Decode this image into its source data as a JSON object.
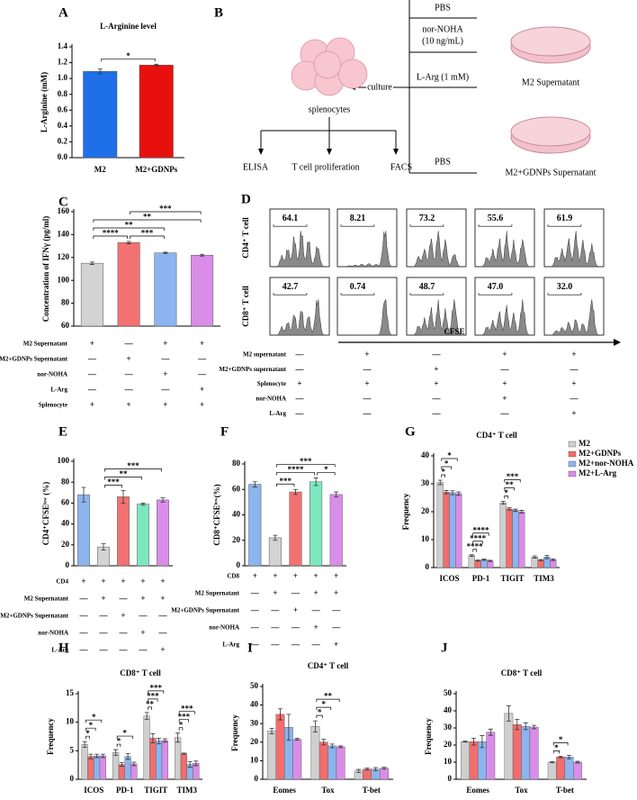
{
  "diagram": {
    "panel": "B",
    "treatments": [
      "PBS",
      "nor-NOHA",
      "(10 ng/mL)",
      "L-Arg (1 mM)",
      "PBS"
    ],
    "dishes": [
      "M2 Supernatant",
      "M2+GDNPs Supernatant"
    ],
    "culture": "culture",
    "cells": "splenocytes",
    "readouts": [
      "ELISA",
      "T cell proliferation",
      "FACS"
    ]
  },
  "chart_data": [
    {
      "panel": "A",
      "type": "bar",
      "title": "L-Arginine level",
      "ylabel": "L-Arginine (mM)",
      "categories": [
        "M2",
        "M2+GDNPs"
      ],
      "values": [
        1.09,
        1.17
      ],
      "errors": [
        0.03,
        0.01
      ],
      "colors": [
        "#1f6fe8",
        "#e8100f"
      ],
      "ylim": [
        0,
        1.4
      ],
      "yticks": [
        {
          "value": 0,
          "label": "0.0"
        },
        0.2,
        0.4,
        0.6,
        0.8,
        {
          "value": 1,
          "label": "1.0"
        },
        1.2,
        1.4
      ],
      "significance": [
        {
          "bars": [
            0,
            1
          ],
          "label": "*"
        }
      ]
    },
    {
      "panel": "C",
      "type": "bar",
      "ylabel": "Concentration of IFNγ (pg/ml)",
      "values": [
        115,
        133,
        124,
        122
      ],
      "errors": [
        1,
        1,
        0.6,
        0.8
      ],
      "colors": [
        "#d3d3d3",
        "#f27272",
        "#8cb4ee",
        "#d98de8"
      ],
      "ylim": [
        60,
        160
      ],
      "yticks": [
        60,
        80,
        100,
        120,
        140,
        160
      ],
      "significance": [
        {
          "bars": [
            0,
            1
          ],
          "label": "****"
        },
        {
          "bars": [
            1,
            2
          ],
          "label": "***"
        },
        {
          "bars": [
            0,
            2
          ],
          "label": "**"
        },
        {
          "bars": [
            0,
            3
          ],
          "label": "**"
        },
        {
          "bars": [
            1,
            3
          ],
          "label": "***"
        }
      ],
      "conditions": [
        {
          "name": "M2 Supernatant",
          "marks": [
            "+",
            "—",
            "+",
            "+"
          ]
        },
        {
          "name": "M2+GDNPs Supernatant",
          "marks": [
            "—",
            "+",
            "—",
            "—"
          ]
        },
        {
          "name": "nor-NOHA",
          "marks": [
            "—",
            "—",
            "+",
            "—"
          ]
        },
        {
          "name": "L-Arg",
          "marks": [
            "—",
            "—",
            "—",
            "+"
          ]
        },
        {
          "name": "Splenocyte",
          "marks": [
            "+",
            "+",
            "+",
            "+"
          ]
        }
      ]
    },
    {
      "panel": "D",
      "type": "flow_histogram",
      "xlabel": "CFSE",
      "color": "#8a8a8a",
      "rows": [
        {
          "name": "CD4⁺ T cell",
          "values": [
            64.1,
            8.21,
            73.2,
            55.6,
            61.9
          ],
          "value_labels": [
            "64.1",
            "8.21",
            "73.2",
            "55.6",
            "61.9"
          ]
        },
        {
          "name": "CD8⁺ T cell",
          "values": [
            42.7,
            0.74,
            48.7,
            47,
            32
          ],
          "value_labels": [
            "42.7",
            "0.74",
            "48.7",
            "47.0",
            "32.0"
          ]
        }
      ],
      "conditions": [
        {
          "name": "M2 supernatant",
          "marks": [
            "—",
            "+",
            "—",
            "+",
            "+"
          ]
        },
        {
          "name": "M2+GDNPs supernatant",
          "marks": [
            "—",
            "—",
            "+",
            "—",
            "—"
          ]
        },
        {
          "name": "Splenocyte",
          "marks": [
            "+",
            "+",
            "+",
            "+",
            "+"
          ]
        },
        {
          "name": "nor-NOHA",
          "marks": [
            "—",
            "—",
            "—",
            "+",
            "—"
          ]
        },
        {
          "name": "L-Arg",
          "marks": [
            "—",
            "—",
            "—",
            "—",
            "+"
          ]
        }
      ]
    },
    {
      "panel": "E",
      "type": "bar",
      "ylabel": "CD4⁺CFSEˡᵒʷ (%)",
      "values": [
        68,
        18,
        66,
        59,
        63
      ],
      "errors": [
        7,
        3,
        6,
        1,
        2
      ],
      "colors": [
        "#8cb4ee",
        "#d3d3d3",
        "#f27272",
        "#7de8c0",
        "#d98de8"
      ],
      "ylim": [
        0,
        100
      ],
      "yticks": [
        0,
        20,
        40,
        60,
        80,
        100
      ],
      "significance": [
        {
          "bars": [
            1,
            2
          ],
          "label": "***"
        },
        {
          "bars": [
            1,
            3
          ],
          "label": "**"
        },
        {
          "bars": [
            1,
            4
          ],
          "label": "***"
        }
      ],
      "conditions": [
        {
          "name": "CD4",
          "marks": [
            "+",
            "+",
            "+",
            "+",
            "+"
          ]
        },
        {
          "name": "M2 Supernatant",
          "marks": [
            "—",
            "+",
            "—",
            "+",
            "+"
          ]
        },
        {
          "name": "M2+GDNPs Supernatant",
          "marks": [
            "—",
            "—",
            "+",
            "—",
            "—"
          ]
        },
        {
          "name": "nor-NOHA",
          "marks": [
            "—",
            "—",
            "—",
            "+",
            "—"
          ]
        },
        {
          "name": "L-Arg",
          "marks": [
            "—",
            "—",
            "—",
            "—",
            "+"
          ]
        }
      ]
    },
    {
      "panel": "F",
      "type": "bar",
      "ylabel": "CD8⁺CFSEˡᵒʷ(%)",
      "values": [
        64,
        22,
        58,
        66,
        56
      ],
      "errors": [
        2,
        2,
        2,
        3,
        2
      ],
      "colors": [
        "#8cb4ee",
        "#d3d3d3",
        "#f27272",
        "#7de8c0",
        "#d98de8"
      ],
      "ylim": [
        0,
        80
      ],
      "yticks": [
        0,
        20,
        40,
        60,
        80
      ],
      "significance": [
        {
          "bars": [
            1,
            2
          ],
          "label": "***"
        },
        {
          "bars": [
            3,
            4
          ],
          "label": "*"
        },
        {
          "bars": [
            1,
            3
          ],
          "label": "****"
        },
        {
          "bars": [
            1,
            4
          ],
          "label": "***"
        }
      ],
      "conditions": [
        {
          "name": "CD8",
          "marks": [
            "+",
            "+",
            "+",
            "+",
            "+"
          ]
        },
        {
          "name": "M2 Supernatant",
          "marks": [
            "—",
            "+",
            "—",
            "+",
            "+"
          ]
        },
        {
          "name": "M2+GDNPs Supernatant",
          "marks": [
            "—",
            "—",
            "+",
            "—",
            "—"
          ]
        },
        {
          "name": "nor-NOHA",
          "marks": [
            "—",
            "—",
            "—",
            "+",
            "—"
          ]
        },
        {
          "name": "L-Arg",
          "marks": [
            "—",
            "—",
            "—",
            "—",
            "+"
          ]
        }
      ]
    },
    {
      "panel": "G",
      "type": "grouped_bar",
      "title": "CD4⁺ T cell",
      "ylabel": "Frequency",
      "categories": [
        "ICOS",
        "PD-1",
        "TIGIT",
        "TIM3"
      ],
      "legend": "upper right",
      "ylim": [
        0,
        40
      ],
      "yticks": [
        0,
        10,
        20,
        30,
        40
      ],
      "series": [
        {
          "name": "M2",
          "color": "#cfcfcf",
          "values": [
            30.5,
            4.3,
            23.2,
            3.8
          ],
          "errors": [
            0.8,
            0.3,
            0.5,
            0.4
          ]
        },
        {
          "name": "M2+GDNPs",
          "color": "#f26d6d",
          "values": [
            27,
            2.5,
            21,
            2.7
          ],
          "errors": [
            0.6,
            0.2,
            0.4,
            0.2
          ]
        },
        {
          "name": "M2+nor-NOHA",
          "color": "#8cb4ee",
          "values": [
            26.8,
            2.8,
            20.5,
            3.8
          ],
          "errors": [
            0.7,
            0.2,
            0.4,
            0.6
          ]
        },
        {
          "name": "M2+L-Arg",
          "color": "#d98de8",
          "values": [
            26.5,
            2.4,
            20,
            2.8
          ],
          "errors": [
            0.6,
            0.2,
            0.5,
            0.3
          ]
        }
      ],
      "significance": [
        {
          "category": "ICOS",
          "bars": [
            0,
            1
          ],
          "label": "*"
        },
        {
          "category": "ICOS",
          "bars": [
            0,
            2
          ],
          "label": "*"
        },
        {
          "category": "ICOS",
          "bars": [
            0,
            3
          ],
          "label": "*"
        },
        {
          "category": "PD-1",
          "bars": [
            0,
            1
          ],
          "label": "****"
        },
        {
          "category": "PD-1",
          "bars": [
            0,
            2
          ],
          "label": "****"
        },
        {
          "category": "PD-1",
          "bars": [
            0,
            3
          ],
          "label": "****"
        },
        {
          "category": "TIGIT",
          "bars": [
            0,
            1
          ],
          "label": "*"
        },
        {
          "category": "TIGIT",
          "bars": [
            0,
            2
          ],
          "label": "**"
        },
        {
          "category": "TIGIT",
          "bars": [
            0,
            3
          ],
          "label": "***"
        }
      ]
    },
    {
      "panel": "H",
      "type": "grouped_bar",
      "title": "CD8⁺ T cell",
      "ylabel": "Frequency",
      "categories": [
        "ICOS",
        "PD-1",
        "TIGIT",
        "TIM3"
      ],
      "ylim": [
        0,
        15
      ],
      "yticks": [
        0,
        5,
        10,
        15
      ],
      "series": [
        {
          "color": "#cfcfcf",
          "values": [
            6.1,
            4.7,
            11.1,
            7.3
          ],
          "errors": [
            0.5,
            0.5,
            0.6,
            0.8
          ]
        },
        {
          "color": "#f26d6d",
          "values": [
            4,
            2.6,
            7.2,
            4.5
          ],
          "errors": [
            0.4,
            0.3,
            0.8,
            0.1
          ]
        },
        {
          "color": "#8cb4ee",
          "values": [
            4.1,
            4,
            6.7,
            2.6
          ],
          "errors": [
            0.3,
            0.5,
            0.5,
            0.5
          ]
        },
        {
          "color": "#d98de8",
          "values": [
            4.1,
            2.7,
            6.8,
            2.8
          ],
          "errors": [
            0.3,
            0.3,
            0.3,
            0.4
          ]
        }
      ],
      "significance": [
        {
          "category": "ICOS",
          "bars": [
            0,
            1
          ],
          "label": "*"
        },
        {
          "category": "ICOS",
          "bars": [
            0,
            2
          ],
          "label": "*"
        },
        {
          "category": "ICOS",
          "bars": [
            0,
            3
          ],
          "label": "*"
        },
        {
          "category": "PD-1",
          "bars": [
            0,
            1
          ],
          "label": "*"
        },
        {
          "category": "PD-1",
          "bars": [
            0,
            3
          ],
          "label": "*"
        },
        {
          "category": "TIGIT",
          "bars": [
            0,
            1
          ],
          "label": "**"
        },
        {
          "category": "TIGIT",
          "bars": [
            0,
            2
          ],
          "label": "***"
        },
        {
          "category": "TIGIT",
          "bars": [
            0,
            3
          ],
          "label": "***"
        },
        {
          "category": "TIM3",
          "bars": [
            0,
            1
          ],
          "label": "*"
        },
        {
          "category": "TIM3",
          "bars": [
            0,
            2
          ],
          "label": "***"
        },
        {
          "category": "TIM3",
          "bars": [
            0,
            3
          ],
          "label": "***"
        }
      ]
    },
    {
      "panel": "I",
      "type": "grouped_bar",
      "title": "CD4⁺ T cell",
      "ylabel": "Frequency",
      "categories": [
        "Eomes",
        "Tox",
        "T-bet"
      ],
      "ylim": [
        0,
        50
      ],
      "yticks": [
        0,
        10,
        20,
        30,
        40,
        50
      ],
      "series": [
        {
          "color": "#cfcfcf",
          "values": [
            26,
            28.5,
            4.5
          ],
          "errors": [
            1.5,
            3,
            0.8
          ]
        },
        {
          "color": "#f26d6d",
          "values": [
            35,
            20,
            5.5
          ],
          "errors": [
            3,
            1.5,
            0.5
          ]
        },
        {
          "color": "#8cb4ee",
          "values": [
            28,
            18,
            5.5
          ],
          "errors": [
            7,
            1,
            0.8
          ]
        },
        {
          "color": "#d98de8",
          "values": [
            21.5,
            17.5,
            6
          ],
          "errors": [
            0.5,
            0.5,
            0.5
          ]
        }
      ],
      "significance": [
        {
          "category": "Tox",
          "bars": [
            0,
            1
          ],
          "label": "*"
        },
        {
          "category": "Tox",
          "bars": [
            0,
            2
          ],
          "label": "*"
        },
        {
          "category": "Tox",
          "bars": [
            0,
            3
          ],
          "label": "**"
        }
      ]
    },
    {
      "panel": "J",
      "type": "grouped_bar",
      "title": "CD8⁺ T cell",
      "ylabel": "Frequency",
      "categories": [
        "Eomes",
        "Tox",
        "T-bet"
      ],
      "ylim": [
        0,
        50
      ],
      "yticks": [
        0,
        10,
        20,
        30,
        40,
        50
      ],
      "series": [
        {
          "color": "#cfcfcf",
          "values": [
            22,
            38.5,
            10
          ],
          "errors": [
            0.3,
            4.5,
            0.4
          ]
        },
        {
          "color": "#f26d6d",
          "values": [
            22,
            32,
            13
          ],
          "errors": [
            2,
            3,
            0.5
          ]
        },
        {
          "color": "#8cb4ee",
          "values": [
            22,
            31,
            13
          ],
          "errors": [
            3.5,
            2,
            1
          ]
        },
        {
          "color": "#d98de8",
          "values": [
            27.5,
            30.5,
            10
          ],
          "errors": [
            1.8,
            1,
            0.5
          ]
        }
      ],
      "significance": [
        {
          "category": "T-bet",
          "bars": [
            0,
            1
          ],
          "label": "*"
        },
        {
          "category": "T-bet",
          "bars": [
            0,
            2
          ],
          "label": "*"
        }
      ]
    }
  ]
}
